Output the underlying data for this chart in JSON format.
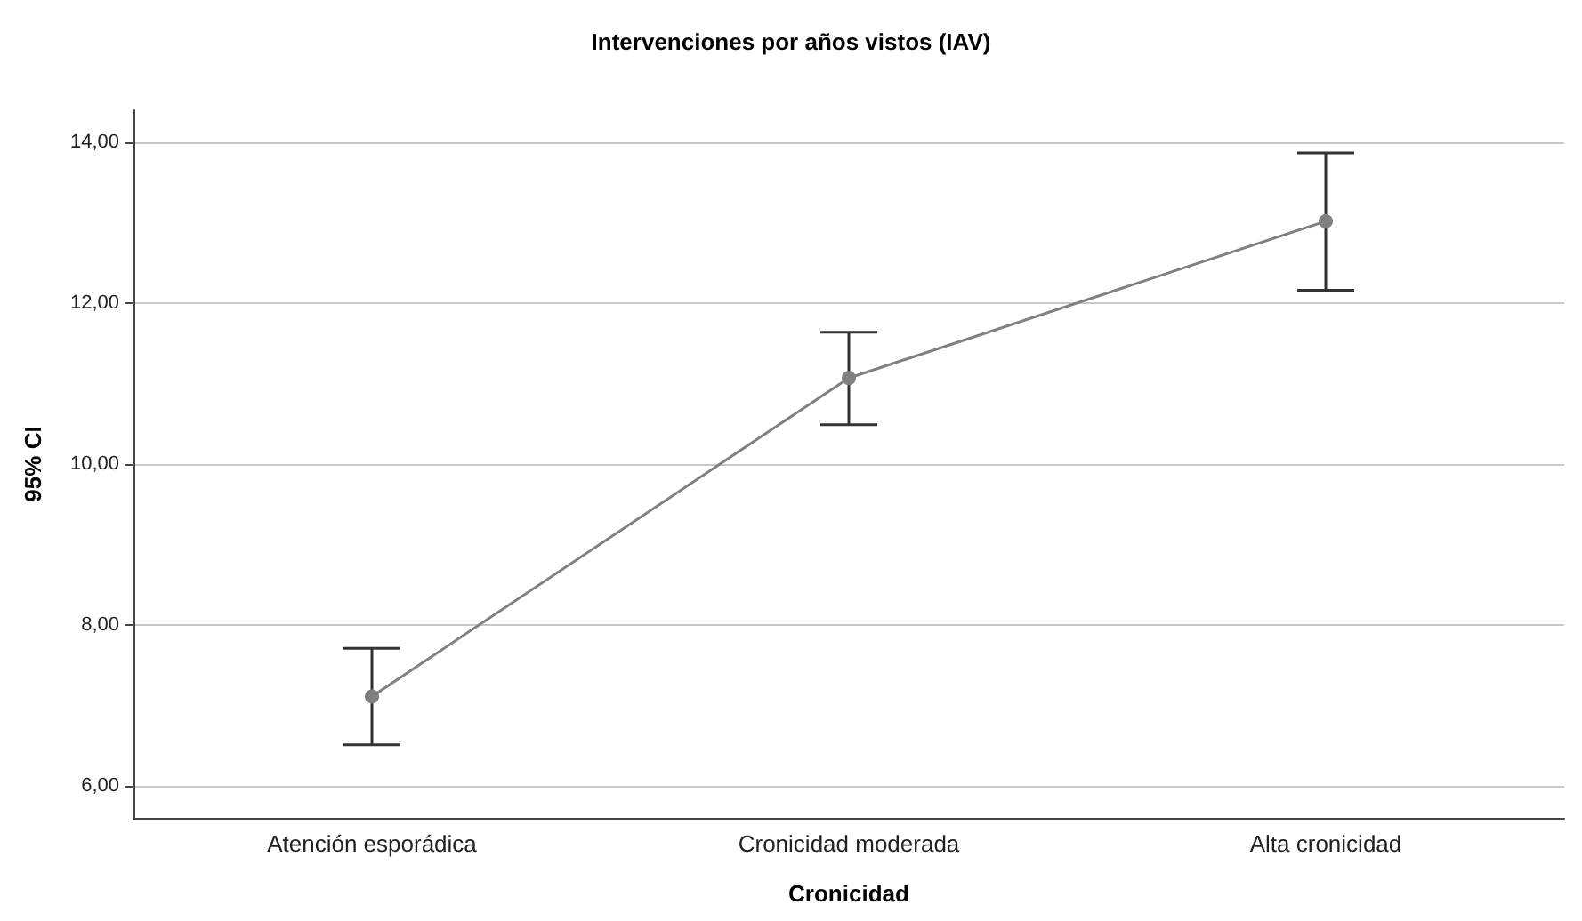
{
  "chart_data": {
    "type": "line",
    "title": "Intervenciones por años vistos (IAV)",
    "xlabel": "Cronicidad",
    "ylabel": "95% CI",
    "categories": [
      "Atención esporádica",
      "Cronicidad moderada",
      "Alta cronicidad"
    ],
    "series": [
      {
        "color": "#808080",
        "values": [
          7.11,
          11.07,
          13.02
        ],
        "errors": [
          [
            6.51,
            7.71
          ],
          [
            10.49,
            11.64
          ],
          [
            12.16,
            13.87
          ]
        ]
      }
    ],
    "ylim": [
      5.6,
      14.4
    ],
    "yticks": [
      {
        "value": 6,
        "label": "6,00"
      },
      {
        "value": 8,
        "label": "8,00"
      },
      {
        "value": 10,
        "label": "10,00"
      },
      {
        "value": 12,
        "label": "12,00"
      },
      {
        "value": 14,
        "label": "14,00"
      }
    ],
    "grid": "y",
    "marker": "circle",
    "line_style": "solid"
  }
}
